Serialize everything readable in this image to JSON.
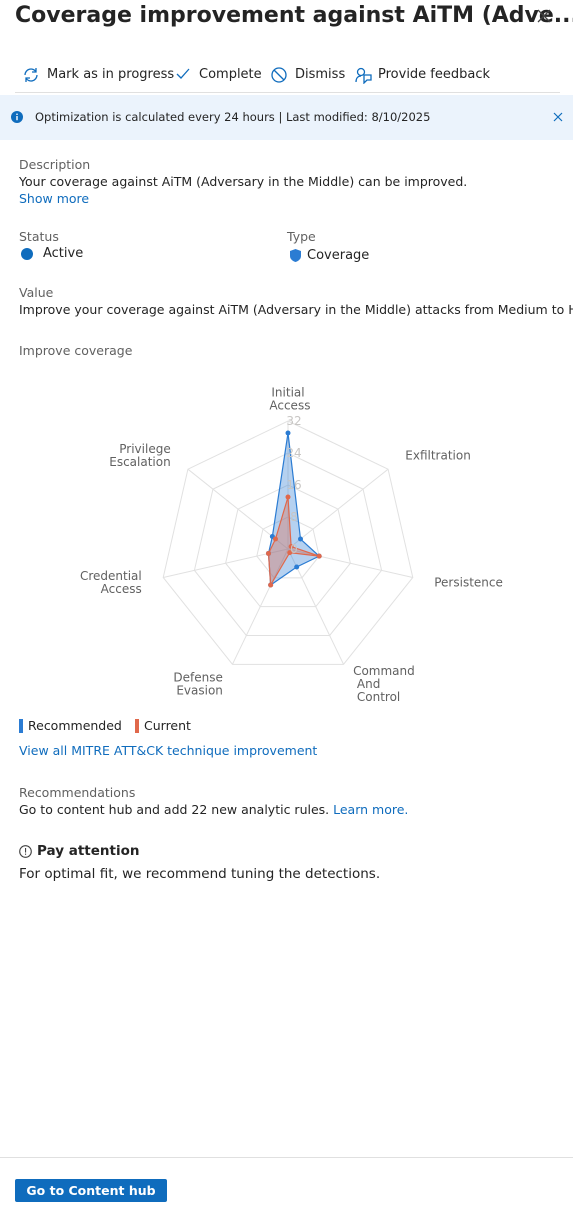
{
  "header": {
    "title": "Coverage improvement against AiTM (Adve..."
  },
  "toolbar": [
    "Mark as in progress",
    "Complete",
    "Dismiss",
    "Provide feedback"
  ],
  "banner": "Optimization is calculated every 24 hours | Last modified: 8/10/2025",
  "description": {
    "label": "Description",
    "text": "Your coverage against AiTM (Adversary in the Middle) can be improved.",
    "link": "Show more"
  },
  "status": {
    "label": "Status",
    "value": "Active"
  },
  "type": {
    "label": "Type",
    "value": "Coverage"
  },
  "value": {
    "label": "Value",
    "text": "Improve your coverage against AiTM (Adversary in the Middle) attacks from Medium to High."
  },
  "coverage_label": "Improve coverage",
  "chart_data": {
    "type": "radar",
    "categories": [
      "Initial Access",
      "Exfiltration",
      "Persistence",
      "Command And Control",
      "Defense Evasion",
      "Credential Access",
      "Privilege Escalation"
    ],
    "series": [
      {
        "name": "Recommended",
        "color": "#2b7cd3",
        "values": [
          29,
          4,
          8,
          5,
          10,
          5,
          5
        ]
      },
      {
        "name": "Current",
        "color": "#e0684b",
        "values": [
          13,
          1,
          8,
          1,
          10,
          5,
          4
        ]
      }
    ],
    "rlim": [
      0,
      32
    ],
    "rticks": [
      0,
      8,
      16,
      24,
      32
    ],
    "grid": true
  },
  "mitre_link": "View all MITRE ATT&CK technique improvement",
  "recommendations": {
    "label": "Recommendations",
    "text": "Go to content hub and add 22 new analytic rules.",
    "link": "Learn more."
  },
  "attention": {
    "title": "Pay attention",
    "text": "For optimal fit, we recommend tuning the detections."
  },
  "footer": {
    "button": "Go to Content hub"
  }
}
